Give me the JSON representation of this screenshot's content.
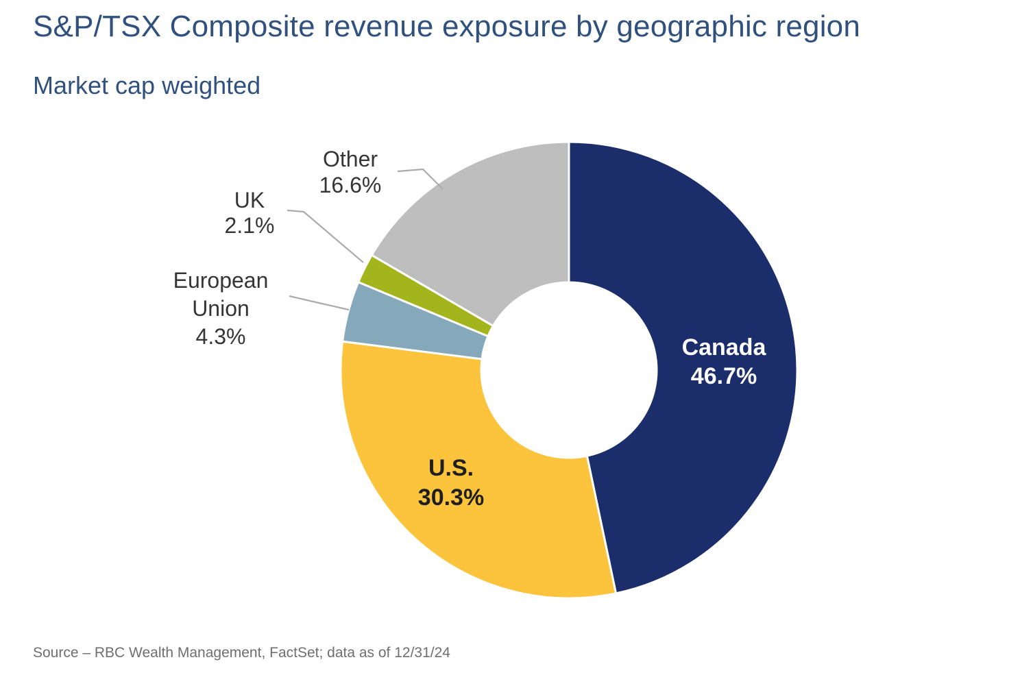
{
  "header": {
    "title": "S&P/TSX Composite revenue exposure by geographic region",
    "subtitle": "Market cap weighted"
  },
  "chart_data": {
    "type": "pie",
    "subtype": "donut",
    "title": "S&P/TSX Composite revenue exposure by geographic region",
    "subtitle": "Market cap weighted",
    "unit": "%",
    "start_angle_deg": 0,
    "direction": "clockwise",
    "donut_hole": true,
    "leader_line_color": "#ABABAB",
    "segments": [
      {
        "label": "Canada",
        "value": 46.7,
        "color": "#1B2E6B",
        "label_placement": "inside",
        "label_color": "#FFFFFF"
      },
      {
        "label": "U.S.",
        "value": 30.3,
        "color": "#FBC43C",
        "label_placement": "inside",
        "label_color": "#1F1F1F"
      },
      {
        "label": "European Union",
        "value": 4.3,
        "color": "#85A8BB",
        "label_placement": "outside",
        "label_color": "#353535"
      },
      {
        "label": "UK",
        "value": 2.1,
        "color": "#A3B51C",
        "label_placement": "outside",
        "label_color": "#353535"
      },
      {
        "label": "Other",
        "value": 16.6,
        "color": "#BFBEBE",
        "label_placement": "outside",
        "label_color": "#353535"
      }
    ]
  },
  "footer": {
    "source": "Source – RBC Wealth Management, FactSet; data as of 12/31/24"
  },
  "colors": {
    "title_text": "#30517D",
    "source_text": "#6F6F6F",
    "background": "#FFFFFF"
  }
}
